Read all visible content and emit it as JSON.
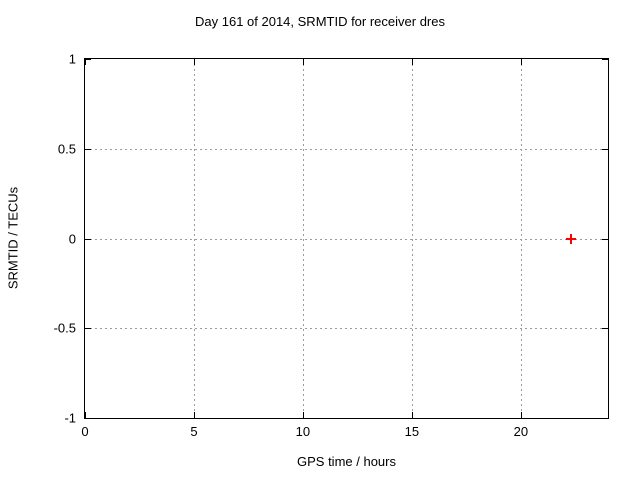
{
  "window": {
    "background": "#ffffff",
    "text_color": "#000000"
  },
  "chart_data": {
    "type": "scatter",
    "title": "Day 161 of 2014, SRMTID for receiver dres",
    "xlabel": "GPS time / hours",
    "ylabel": "SRMTID / TECUs",
    "xlim": [
      0,
      24
    ],
    "ylim": [
      -1,
      1
    ],
    "xticks": [
      0,
      5,
      10,
      15,
      20
    ],
    "xtick_labels": [
      "0",
      "5",
      "10",
      "15",
      "20"
    ],
    "yticks": [
      -1,
      -0.5,
      0,
      0.5,
      1
    ],
    "ytick_labels": [
      "-1",
      "-0.5",
      "0",
      "0.5",
      "1"
    ],
    "grid": true,
    "grid_style": "dashed",
    "legend_position": "none",
    "axis_color": "#000000",
    "grid_color": "#9c9c9c",
    "series": [
      {
        "name": "SRMTID",
        "marker": "plus",
        "color": "#ff0000",
        "points": [
          {
            "x": 22.3,
            "y": 0
          }
        ]
      }
    ]
  }
}
